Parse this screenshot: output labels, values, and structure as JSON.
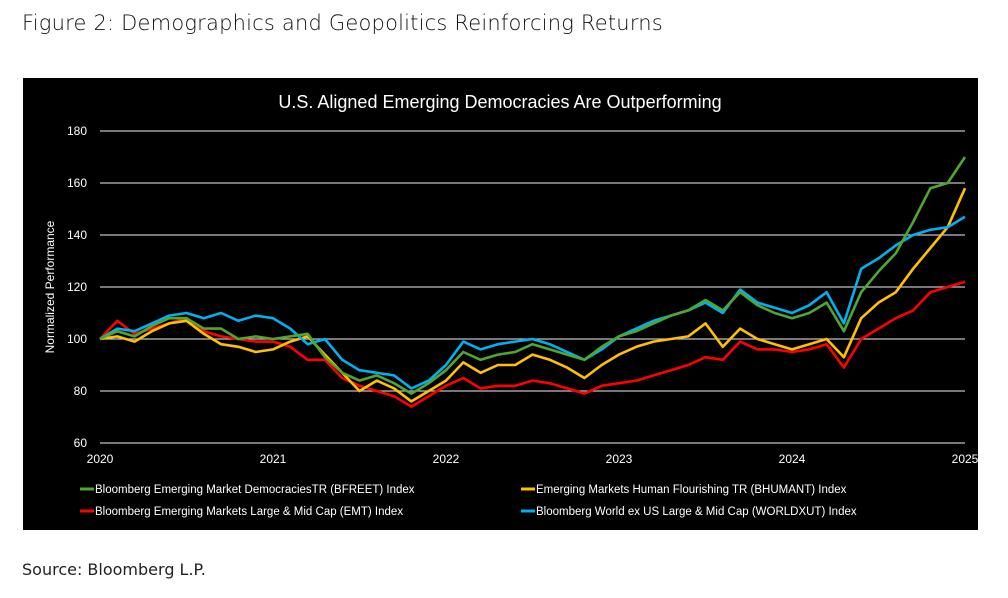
{
  "figure": {
    "title": "Figure 2: Demographics and Geopolitics Reinforcing Returns",
    "source": "Source: Bloomberg L.P."
  },
  "chart_data": {
    "type": "line",
    "title": "U.S. Aligned Emerging Democracies Are Outperforming",
    "xlabel": "",
    "ylabel": "Normalized Performance",
    "xlim": [
      2020,
      2025
    ],
    "ylim": [
      60,
      180
    ],
    "yticks": [
      60,
      80,
      100,
      120,
      140,
      160,
      180
    ],
    "xticks": [
      2020,
      2021,
      2022,
      2023,
      2024,
      2025
    ],
    "xtick_labels": [
      "2020",
      "2021",
      "2022",
      "2023",
      "2024",
      "2025"
    ],
    "grid": "horizontal",
    "legend_placement": "bottom",
    "background": "#000000",
    "x": [
      2020.0,
      2020.1,
      2020.2,
      2020.3,
      2020.4,
      2020.5,
      2020.6,
      2020.7,
      2020.8,
      2020.9,
      2021.0,
      2021.1,
      2021.2,
      2021.3,
      2021.4,
      2021.5,
      2021.6,
      2021.7,
      2021.8,
      2021.9,
      2022.0,
      2022.1,
      2022.2,
      2022.3,
      2022.4,
      2022.5,
      2022.6,
      2022.7,
      2022.8,
      2022.9,
      2023.0,
      2023.1,
      2023.2,
      2023.3,
      2023.4,
      2023.5,
      2023.6,
      2023.7,
      2023.8,
      2023.9,
      2024.0,
      2024.1,
      2024.2,
      2024.3,
      2024.4,
      2024.5,
      2024.6,
      2024.7,
      2024.8,
      2024.9,
      2025.0
    ],
    "series": [
      {
        "name": "Bloomberg Emerging Markets Large & Mid Cap (EMT) Index",
        "color": "#ff0000",
        "values": [
          100,
          107,
          102,
          104,
          106,
          108,
          103,
          101,
          100,
          99,
          99,
          97,
          92,
          92,
          85,
          82,
          80,
          78,
          74,
          78,
          82,
          85,
          81,
          82,
          82,
          84,
          83,
          81,
          79,
          82,
          83,
          84,
          86,
          88,
          90,
          93,
          92,
          99,
          96,
          96,
          95,
          96,
          98,
          89,
          100,
          104,
          108,
          111,
          118,
          120,
          122
        ]
      },
      {
        "name": "Emerging Markets Human Flourishing TR (BHUMANT) Index",
        "color": "#ffc000",
        "values": [
          100,
          101,
          99,
          103,
          106,
          107,
          102,
          98,
          97,
          95,
          96,
          99,
          101,
          94,
          87,
          80,
          84,
          81,
          76,
          80,
          84,
          91,
          87,
          90,
          90,
          94,
          92,
          89,
          85,
          90,
          94,
          97,
          99,
          100,
          101,
          106,
          97,
          104,
          100,
          98,
          96,
          98,
          100,
          93,
          108,
          114,
          118,
          127,
          135,
          143,
          158
        ]
      },
      {
        "name": "Bloomberg World ex US Large & Mid Cap (WORLDXUT) Index",
        "color": "#00b0f0",
        "values": [
          100,
          104,
          103,
          106,
          109,
          110,
          108,
          110,
          107,
          109,
          108,
          104,
          98,
          100,
          92,
          88,
          87,
          86,
          81,
          84,
          90,
          99,
          96,
          98,
          99,
          100,
          98,
          95,
          92,
          96,
          101,
          104,
          107,
          109,
          111,
          114,
          110,
          119,
          114,
          112,
          110,
          113,
          118,
          106,
          127,
          131,
          136,
          140,
          142,
          143,
          147
        ]
      },
      {
        "name": "Bloomberg Emerging Market DemocraciesTR (BFREET) Index",
        "color": "#4ea72e",
        "values": [
          100,
          103,
          101,
          105,
          108,
          108,
          104,
          104,
          100,
          101,
          100,
          101,
          102,
          93,
          87,
          84,
          86,
          83,
          79,
          83,
          88,
          95,
          92,
          94,
          95,
          98,
          96,
          94,
          92,
          97,
          101,
          103,
          106,
          109,
          111,
          115,
          111,
          118,
          113,
          110,
          108,
          110,
          114,
          103,
          118,
          126,
          133,
          145,
          158,
          160,
          170
        ]
      }
    ],
    "legend_order": [
      3,
      1,
      0,
      2
    ]
  }
}
